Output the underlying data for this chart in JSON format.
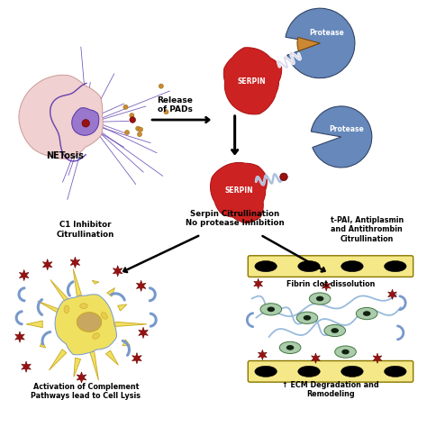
{
  "background_color": "#ffffff",
  "fig_width": 4.74,
  "fig_height": 4.74,
  "dpi": 100,
  "labels": {
    "netosis": "NETosis",
    "release_of_pads": "Release\nof PADs",
    "serpin1": "SERPIN",
    "serpin2": "SERPIN",
    "protease1": "Protease",
    "protease2": "Protease",
    "serpin_citrullination": "Serpin Citrullination\nNo protease Inhibition",
    "c1_inhibitor": "C1 Inhibitor\nCitrullination",
    "tpai": "t-PAI, Antiplasmin\nand Antithrombin\nCitrullination",
    "fibrin": "Fibrin clot dissolution",
    "complement": "Activation of Complement\nPathways lead to Cell Lysis",
    "ecm": "↑ ECM Degradation and\nRemodeling"
  },
  "colors": {
    "red_serpin": "#cc2222",
    "red_dark": "#aa1111",
    "blue_protease": "#6688bb",
    "blue_light": "#8aadcc",
    "orange": "#cc8833",
    "purple": "#5533aa",
    "purple_light": "#9977cc",
    "pink": "#e8b0b0",
    "pink_light": "#f0d0d0",
    "yellow_cell": "#f0e060",
    "yellow_dark": "#c8a820",
    "yellow_med": "#e8cc50",
    "blue_shape": "#7799cc",
    "green_cell": "#aaccaa",
    "green_dark": "#447744",
    "dark_red_star": "#991111",
    "black": "#000000",
    "white": "#ffffff",
    "bar_yellow": "#f5e888",
    "bar_outline": "#887700",
    "tan_nucleus": "#c8a860",
    "blue_line": "#99bbdd",
    "wavy_blue": "#aabbdd"
  }
}
